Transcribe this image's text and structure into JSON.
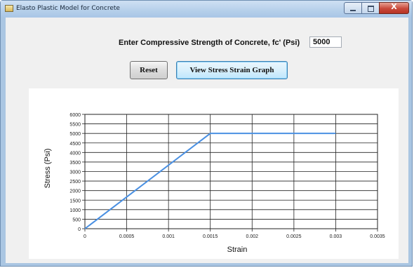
{
  "window": {
    "title": "Elasto Plastic Model for Concrete",
    "close_glyph": "X"
  },
  "form": {
    "prompt_label": "Enter Compressive Strength of Concrete, fc' (Psi)",
    "fc_value": "5000",
    "reset_label": "Reset",
    "view_graph_label": "View Stress Strain Graph"
  },
  "chart_data": {
    "type": "line",
    "xlabel": "Strain",
    "ylabel": "Stress (Psi)",
    "xlim": [
      0,
      0.0035
    ],
    "ylim": [
      0,
      6000
    ],
    "xticks": [
      0,
      0.0005,
      0.001,
      0.0015,
      0.002,
      0.0025,
      0.003,
      0.0035
    ],
    "xtick_labels": [
      "0",
      "0.0005",
      "0.001",
      "0.0015",
      "0.002",
      "0.0025",
      "0.003",
      "0.0035"
    ],
    "yticks": [
      0,
      500,
      1000,
      1500,
      2000,
      2500,
      3000,
      3500,
      4000,
      4500,
      5000,
      5500,
      6000
    ],
    "ytick_labels": [
      "0",
      "500",
      "1000",
      "1500",
      "2000",
      "2500",
      "3000",
      "3500",
      "4000",
      "4500",
      "5000",
      "5500",
      "6000"
    ],
    "grid": true,
    "legend": "none",
    "series": [
      {
        "color": "#4a90e2",
        "x": [
          0,
          0.0015,
          0.003
        ],
        "y": [
          0,
          5000,
          5000
        ]
      }
    ]
  }
}
